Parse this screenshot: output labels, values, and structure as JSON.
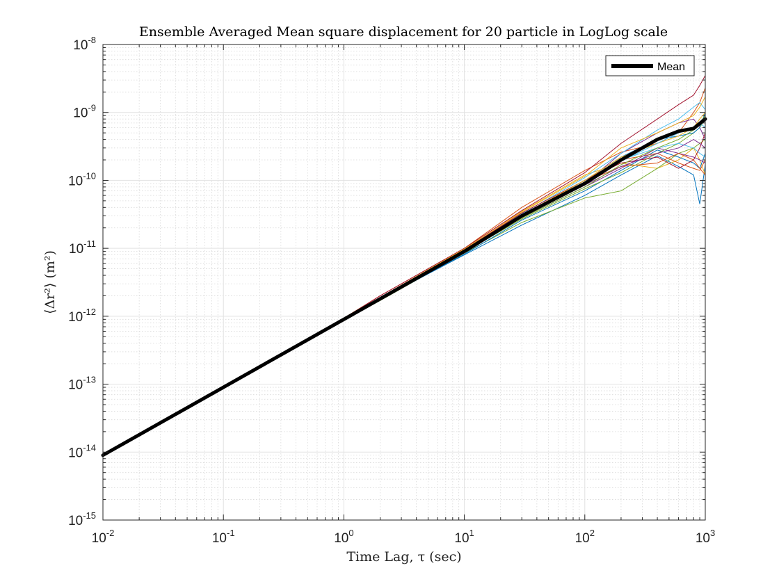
{
  "chart_data": {
    "type": "line",
    "title": "Ensemble Averaged Mean square displacement for 20 particle in LogLog scale",
    "xlabel": "Time Lag, τ (sec)",
    "ylabel": "⟨Δr²⟩ (m²)",
    "xscale": "log",
    "yscale": "log",
    "xlim": [
      0.01,
      1000
    ],
    "ylim": [
      1e-15,
      1e-08
    ],
    "grid": true,
    "minor_grid": true,
    "legend": {
      "position": "top-right",
      "entries": [
        "Mean"
      ]
    },
    "x_ticks": [
      {
        "base": "10",
        "exp": "-2"
      },
      {
        "base": "10",
        "exp": "-1"
      },
      {
        "base": "10",
        "exp": "0"
      },
      {
        "base": "10",
        "exp": "1"
      },
      {
        "base": "10",
        "exp": "2"
      },
      {
        "base": "10",
        "exp": "3"
      }
    ],
    "y_ticks": [
      {
        "base": "10",
        "exp": "-15"
      },
      {
        "base": "10",
        "exp": "-14"
      },
      {
        "base": "10",
        "exp": "-13"
      },
      {
        "base": "10",
        "exp": "-12"
      },
      {
        "base": "10",
        "exp": "-11"
      },
      {
        "base": "10",
        "exp": "-10"
      },
      {
        "base": "10",
        "exp": "-9"
      },
      {
        "base": "10",
        "exp": "-8"
      }
    ],
    "mean_series": {
      "name": "Mean",
      "color": "#000000",
      "x": [
        0.01,
        0.1,
        1,
        10,
        30,
        100,
        200,
        400,
        600,
        800,
        1000
      ],
      "y": [
        9e-15,
        9e-14,
        9e-13,
        9e-12,
        3e-11,
        9e-11,
        2e-10,
        4e-10,
        5.3e-10,
        5.8e-10,
        8e-10
      ]
    },
    "particle_series": [
      {
        "color": "#0072BD",
        "x": [
          0.01,
          1,
          2,
          10,
          30,
          100,
          200,
          400,
          600,
          800,
          900,
          1000
        ],
        "y": [
          9e-15,
          9e-13,
          1.8e-12,
          8e-12,
          2.2e-11,
          6e-11,
          1.2e-10,
          2.3e-10,
          1.6e-10,
          1.2e-10,
          4.5e-11,
          1.7e-10
        ]
      },
      {
        "color": "#D95319",
        "x": [
          0.01,
          1,
          2,
          10,
          30,
          100,
          200,
          400,
          600,
          800,
          900,
          1000
        ],
        "y": [
          9e-15,
          9.4e-13,
          2e-12,
          1e-11,
          4e-11,
          1.4e-10,
          2.6e-10,
          3.5e-10,
          5e-10,
          1e-09,
          1.4e-09,
          2.3e-09
        ]
      },
      {
        "color": "#EDB120",
        "x": [
          0.01,
          1,
          2,
          10,
          30,
          100,
          200,
          400,
          600,
          800,
          900,
          1000
        ],
        "y": [
          9e-15,
          9.2e-13,
          1.9e-12,
          9.6e-12,
          3.5e-11,
          1.2e-10,
          1.8e-10,
          1.5e-10,
          2e-10,
          3e-10,
          2e-10,
          1.2e-10
        ]
      },
      {
        "color": "#7E2F8E",
        "x": [
          0.01,
          1,
          2,
          10,
          30,
          100,
          200,
          400,
          600,
          800,
          900,
          1000
        ],
        "y": [
          9e-15,
          9e-13,
          1.8e-12,
          9e-12,
          3e-11,
          9e-11,
          2.5e-10,
          5e-10,
          7e-10,
          8e-10,
          6e-10,
          4e-10
        ]
      },
      {
        "color": "#77AC30",
        "x": [
          0.01,
          1,
          2,
          10,
          30,
          100,
          200,
          400,
          600,
          800,
          900,
          1000
        ],
        "y": [
          9e-15,
          8.8e-13,
          1.7e-12,
          8.5e-12,
          2.4e-11,
          5.5e-11,
          7e-11,
          1.5e-10,
          2.5e-10,
          3e-10,
          3.5e-10,
          4e-10
        ]
      },
      {
        "color": "#4DBEEE",
        "x": [
          0.01,
          1,
          2,
          10,
          30,
          100,
          200,
          400,
          600,
          800,
          900,
          1000
        ],
        "y": [
          9e-15,
          9.1e-13,
          1.9e-12,
          9.5e-12,
          3.2e-11,
          1.1e-10,
          2.5e-10,
          5.5e-10,
          8e-10,
          1.2e-09,
          1.4e-09,
          1.1e-09
        ]
      },
      {
        "color": "#A2142F",
        "x": [
          0.01,
          1,
          2,
          10,
          30,
          100,
          200,
          400,
          600,
          800,
          900,
          1000
        ],
        "y": [
          9e-15,
          9.3e-13,
          2e-12,
          1e-11,
          3.6e-11,
          1.3e-10,
          3.5e-10,
          8e-10,
          1.3e-09,
          1.8e-09,
          2.5e-09,
          3.5e-09
        ]
      },
      {
        "color": "#0072BD",
        "x": [
          0.01,
          1,
          2,
          10,
          30,
          100,
          200,
          400,
          600,
          800,
          900,
          1000
        ],
        "y": [
          9e-15,
          8.9e-13,
          1.75e-12,
          8.2e-12,
          2.6e-11,
          7e-11,
          1.4e-10,
          2.8e-10,
          2.2e-10,
          1.8e-10,
          1.5e-10,
          2.5e-10
        ]
      },
      {
        "color": "#D95319",
        "x": [
          0.01,
          1,
          2,
          10,
          30,
          100,
          200,
          400,
          600,
          800,
          900,
          1000
        ],
        "y": [
          9e-15,
          9e-13,
          1.85e-12,
          9.2e-12,
          3e-11,
          1e-10,
          2e-10,
          2.5e-10,
          1.8e-10,
          1.5e-10,
          1.4e-10,
          2e-10
        ]
      },
      {
        "color": "#EDB120",
        "x": [
          0.01,
          1,
          2,
          10,
          30,
          100,
          200,
          400,
          600,
          800,
          900,
          1000
        ],
        "y": [
          9e-15,
          9.1e-13,
          1.9e-12,
          9.8e-12,
          3.4e-11,
          1.15e-10,
          3e-10,
          5e-10,
          7e-10,
          9e-10,
          1.2e-09,
          1.7e-09
        ]
      },
      {
        "color": "#7E2F8E",
        "x": [
          0.01,
          1,
          2,
          10,
          30,
          100,
          200,
          400,
          600,
          800,
          900,
          1000
        ],
        "y": [
          9e-15,
          9e-13,
          1.8e-12,
          9e-12,
          2.8e-11,
          8e-11,
          1.5e-10,
          3e-10,
          2.5e-10,
          2.2e-10,
          2e-10,
          1.8e-10
        ]
      },
      {
        "color": "#77AC30",
        "x": [
          0.01,
          1,
          2,
          10,
          30,
          100,
          200,
          400,
          600,
          800,
          900,
          1000
        ],
        "y": [
          9e-15,
          8.9e-13,
          1.8e-12,
          8.8e-12,
          2.7e-11,
          7.5e-11,
          1.3e-10,
          2.5e-10,
          3.5e-10,
          5e-10,
          6e-10,
          8e-10
        ]
      },
      {
        "color": "#4DBEEE",
        "x": [
          0.01,
          1,
          2,
          10,
          30,
          100,
          200,
          400,
          600,
          800,
          900,
          1000
        ],
        "y": [
          9e-15,
          9e-13,
          1.85e-12,
          9.1e-12,
          2.9e-11,
          9e-11,
          2e-10,
          3e-10,
          3.5e-10,
          3e-10,
          2.5e-10,
          2.2e-10
        ]
      },
      {
        "color": "#A2142F",
        "x": [
          0.01,
          1,
          2,
          10,
          30,
          100,
          200,
          400,
          600,
          800,
          900,
          1000
        ],
        "y": [
          9e-15,
          9.2e-13,
          1.9e-12,
          9.5e-12,
          3.3e-11,
          1e-10,
          1.8e-10,
          2.2e-10,
          1.5e-10,
          2e-10,
          3e-10,
          5e-10
        ]
      },
      {
        "color": "#0072BD",
        "x": [
          0.01,
          1,
          2,
          10,
          30,
          100,
          200,
          400,
          600,
          800,
          900,
          1000
        ],
        "y": [
          9e-15,
          9e-13,
          1.9e-12,
          9.3e-12,
          3e-11,
          1e-10,
          2.2e-10,
          4e-10,
          4.5e-10,
          5e-10,
          6e-10,
          1e-09
        ]
      },
      {
        "color": "#D95319",
        "x": [
          0.01,
          1,
          2,
          10,
          30,
          100,
          200,
          400,
          600,
          800,
          900,
          1000
        ],
        "y": [
          9e-15,
          9e-13,
          1.8e-12,
          9e-12,
          2.9e-11,
          9.5e-11,
          1.6e-10,
          1.8e-10,
          2.5e-10,
          2e-10,
          1.5e-10,
          1.2e-10
        ]
      },
      {
        "color": "#EDB120",
        "x": [
          0.01,
          1,
          2,
          10,
          30,
          100,
          200,
          400,
          600,
          800,
          900,
          1000
        ],
        "y": [
          9e-15,
          9.1e-13,
          1.85e-12,
          9.4e-12,
          3.1e-11,
          1e-10,
          2.2e-10,
          3.5e-10,
          4.5e-10,
          6e-10,
          8e-10,
          1e-09
        ]
      },
      {
        "color": "#7E2F8E",
        "x": [
          0.01,
          1,
          2,
          10,
          30,
          100,
          200,
          400,
          600,
          800,
          900,
          1000
        ],
        "y": [
          9e-15,
          9e-13,
          1.8e-12,
          9e-12,
          2.9e-11,
          8.5e-11,
          1.6e-10,
          2.5e-10,
          3e-10,
          4e-10,
          3.5e-10,
          3e-10
        ]
      },
      {
        "color": "#77AC30",
        "x": [
          0.01,
          1,
          2,
          10,
          30,
          100,
          200,
          400,
          600,
          800,
          900,
          1000
        ],
        "y": [
          9e-15,
          9e-13,
          1.82e-12,
          9e-12,
          2.8e-11,
          8e-11,
          1.7e-10,
          3e-10,
          4e-10,
          5.5e-10,
          7e-10,
          9e-10
        ]
      },
      {
        "color": "#4DBEEE",
        "x": [
          0.01,
          1,
          2,
          10,
          30,
          100,
          200,
          400,
          600,
          800,
          900,
          1000
        ],
        "y": [
          9e-15,
          9e-13,
          1.85e-12,
          9.2e-12,
          3e-11,
          9e-11,
          1.9e-10,
          3.5e-10,
          5e-10,
          6e-10,
          7e-10,
          6e-10
        ]
      }
    ]
  }
}
